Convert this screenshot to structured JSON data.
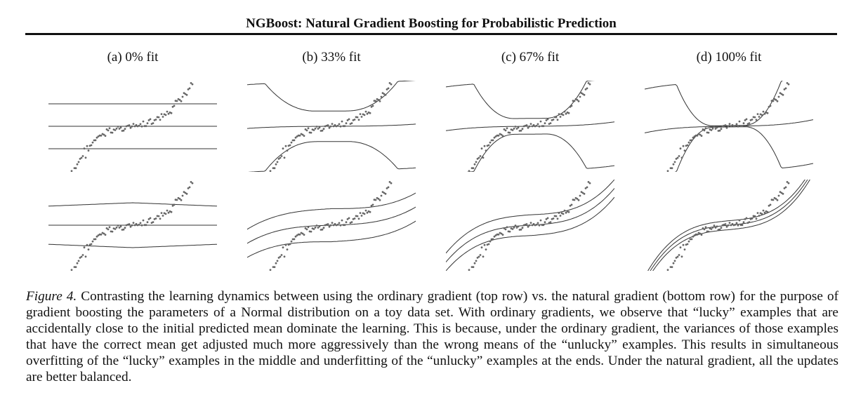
{
  "header": {
    "title": "NGBoost: Natural Gradient Boosting for Probabilistic Prediction"
  },
  "figure": {
    "subcaptions": [
      "(a) 0% fit",
      "(b) 33% fit",
      "(c) 67% fit",
      "(d) 100% fit"
    ],
    "rows": [
      "ordinary gradient",
      "natural gradient"
    ],
    "fit_fractions": [
      0,
      0.33,
      0.67,
      1.0
    ]
  },
  "caption": {
    "label": "Figure 4.",
    "text": " Contrasting the learning dynamics between using the ordinary gradient (top row) vs. the natural gradient (bottom row) for the purpose of gradient boosting the parameters of a Normal distribution on a toy data set. With ordinary gradients, we observe that “lucky” examples that are accidentally close to the initial predicted mean dominate the learning. This is because, under the ordinary gradient, the variances of those examples that have the correct mean get adjusted much more aggressively than the wrong means of the “unlucky” examples. This results in simultaneous overfitting of the “lucky” examples in the middle and underfitting of the “unlucky” examples at the ends. Under the natural gradient, all the updates are better balanced."
  }
}
